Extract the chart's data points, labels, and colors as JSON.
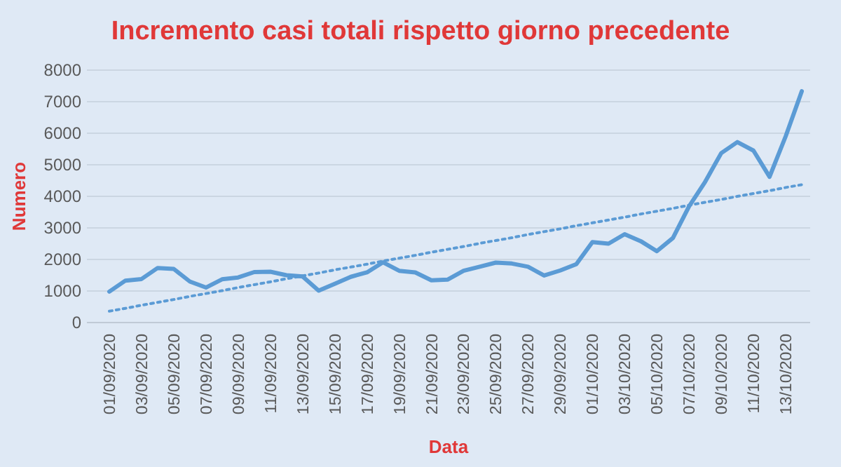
{
  "chart_data": {
    "type": "line",
    "title": "Incremento casi totali rispetto giorno precedente",
    "xlabel": "Data",
    "ylabel": "Numero",
    "categories": [
      "01/09/2020",
      null,
      "03/09/2020",
      null,
      "05/09/2020",
      null,
      "07/09/2020",
      null,
      "09/09/2020",
      null,
      "11/09/2020",
      null,
      "13/09/2020",
      null,
      "15/09/2020",
      null,
      "17/09/2020",
      null,
      "19/09/2020",
      null,
      "21/09/2020",
      null,
      "23/09/2020",
      null,
      "25/09/2020",
      null,
      "27/09/2020",
      null,
      "29/09/2020",
      null,
      "01/10/2020",
      null,
      "03/10/2020",
      null,
      "05/10/2020",
      null,
      "07/10/2020",
      null,
      "09/10/2020",
      null,
      "11/10/2020",
      null,
      "13/10/2020",
      null
    ],
    "series": [
      {
        "color": "#5b9bd5",
        "line_style": "solid",
        "values": [
          980,
          1330,
          1380,
          1730,
          1700,
          1300,
          1110,
          1370,
          1430,
          1600,
          1610,
          1500,
          1460,
          1010,
          1230,
          1450,
          1590,
          1910,
          1640,
          1590,
          1340,
          1360,
          1640,
          1770,
          1900,
          1870,
          1770,
          1490,
          1650,
          1850,
          2550,
          2500,
          2800,
          2580,
          2260,
          2680,
          3680,
          4460,
          5370,
          5720,
          5450,
          4620,
          5900,
          7330
        ]
      },
      {
        "type": "line",
        "color": "#5b9bd5",
        "line_style": "dotted",
        "values": [
          360,
          450,
          550,
          640,
          730,
          830,
          920,
          1010,
          1110,
          1200,
          1290,
          1390,
          1480,
          1570,
          1670,
          1760,
          1850,
          1950,
          2040,
          2130,
          2230,
          2320,
          2410,
          2510,
          2600,
          2690,
          2790,
          2880,
          2970,
          3070,
          3160,
          3250,
          3340,
          3440,
          3530,
          3620,
          3720,
          3810,
          3900,
          4000,
          4090,
          4180,
          4280,
          4370
        ]
      }
    ],
    "ylim": [
      0,
      8000
    ],
    "yticks": [
      0,
      1000,
      2000,
      3000,
      4000,
      5000,
      6000,
      7000,
      8000
    ],
    "grid": "y",
    "marker": "none"
  }
}
